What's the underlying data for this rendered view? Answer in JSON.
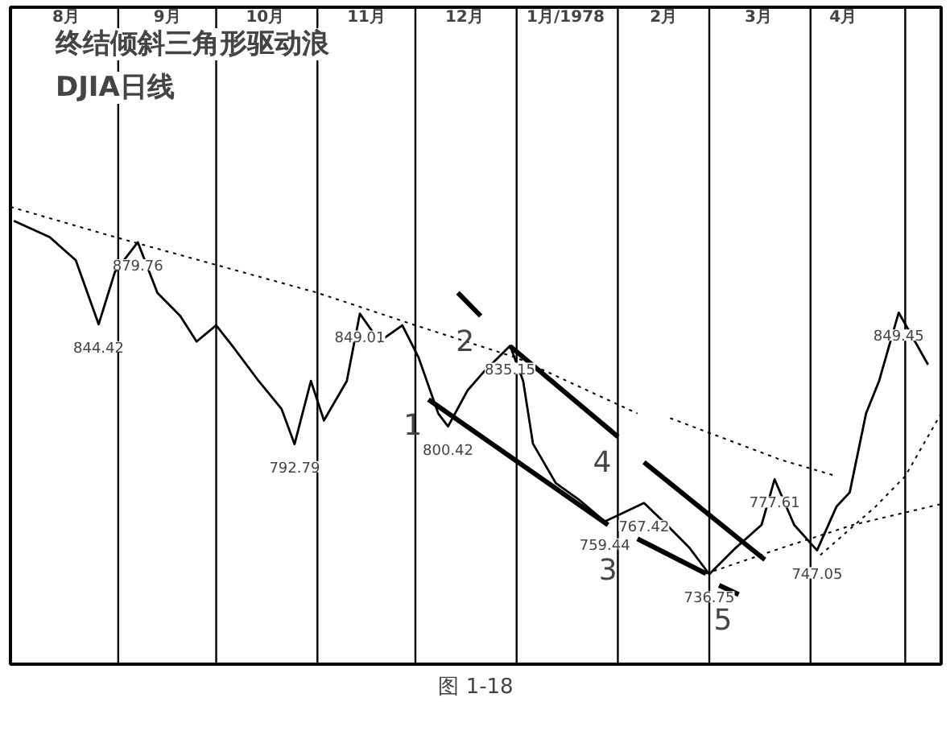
{
  "chart_data": {
    "type": "line",
    "title": "终结倾斜三角形驱动浪",
    "subtitle": "DJIA日线",
    "xlim": [
      "1977-07-30",
      "1978-05-11"
    ],
    "ylim": [
      698,
      981
    ],
    "tick_labels": "x",
    "marker": "none",
    "xticks": [
      {
        "value": "1977-08-16",
        "label": "8月"
      },
      {
        "value": "1977-09-16",
        "label": "9月"
      },
      {
        "value": "1977-10-16",
        "label": "10月"
      },
      {
        "value": "1977-11-16",
        "label": "11月"
      },
      {
        "value": "1977-12-16",
        "label": "12月"
      },
      {
        "value": "1978-01-16",
        "label": "1月/1978"
      },
      {
        "value": "1978-02-15",
        "label": "2月"
      },
      {
        "value": "1978-03-16",
        "label": "3月"
      },
      {
        "value": "1978-04-11",
        "label": "4月"
      }
    ],
    "ref_lines": [
      {
        "axis": "x",
        "value": "1977-09-01",
        "color": "#000000"
      },
      {
        "axis": "x",
        "value": "1977-10-01",
        "color": "#000000"
      },
      {
        "axis": "x",
        "value": "1977-11-01",
        "color": "#000000"
      },
      {
        "axis": "x",
        "value": "1977-12-01",
        "color": "#000000"
      },
      {
        "axis": "x",
        "value": "1978-01-01",
        "color": "#000000"
      },
      {
        "axis": "x",
        "value": "1978-02-01",
        "color": "#000000"
      },
      {
        "axis": "x",
        "value": "1978-03-01",
        "color": "#000000"
      },
      {
        "axis": "x",
        "value": "1978-04-01",
        "color": "#000000"
      },
      {
        "axis": "x",
        "value": "1978-04-30",
        "color": "#000000"
      }
    ],
    "series": [
      {
        "type": "line",
        "color": "#000000",
        "line_style": "solid",
        "x": [
          "1977-07-31",
          "1977-08-11",
          "1977-08-19",
          "1977-08-26",
          "1977-08-31",
          "1977-09-07",
          "1977-09-13",
          "1977-09-20",
          "1977-09-25",
          "1977-10-01",
          "1977-10-06",
          "1977-10-14",
          "1977-10-21",
          "1977-10-25",
          "1977-10-30",
          "1977-11-03",
          "1977-11-10",
          "1977-11-14",
          "1977-11-20",
          "1977-11-27",
          "1977-12-02",
          "1977-12-08",
          "1977-12-11",
          "1977-12-17",
          "1977-12-22",
          "1977-12-30",
          "1978-01-03",
          "1978-01-06",
          "1978-01-13",
          "1978-01-20",
          "1978-01-28",
          "1978-02-09",
          "1978-02-16",
          "1978-02-23",
          "1978-03-01",
          "1978-03-09",
          "1978-03-17",
          "1978-03-21",
          "1978-03-27",
          "1978-04-03",
          "1978-04-09",
          "1978-04-13",
          "1978-04-18",
          "1978-04-22",
          "1978-04-28",
          "1978-05-07"
        ],
        "values": [
          889,
          882,
          872,
          844.42,
          867,
          879.76,
          858,
          848,
          837,
          844,
          835,
          820,
          808,
          792.79,
          820,
          803,
          820,
          849.01,
          837,
          844,
          830,
          806,
          800.42,
          816,
          824,
          835.15,
          820,
          793,
          776,
          769,
          759.44,
          767.42,
          758,
          748,
          736.75,
          748,
          758,
          777.61,
          758,
          747.05,
          766,
          772,
          806,
          820,
          849.45,
          827
        ],
        "value_labels": [
          null,
          null,
          null,
          "844.42",
          null,
          "879.76",
          null,
          null,
          null,
          null,
          null,
          null,
          null,
          "792.79",
          null,
          null,
          null,
          "849.01",
          null,
          null,
          null,
          null,
          "800.42",
          null,
          null,
          "835.15",
          null,
          null,
          null,
          null,
          "759.44",
          "767.42",
          null,
          null,
          "736.75",
          null,
          null,
          "777.61",
          null,
          "747.05",
          null,
          null,
          null,
          null,
          "849.45",
          null
        ]
      },
      {
        "type": "line",
        "color": "#000000",
        "line_style": "solid",
        "x": [
          "1977-12-05",
          "1978-01-29"
        ],
        "values": [
          812,
          758
        ]
      },
      {
        "type": "line",
        "color": "#000000",
        "line_style": "solid",
        "x": [
          "1977-12-14",
          "1977-12-21"
        ],
        "values": [
          858,
          848
        ]
      },
      {
        "type": "line",
        "color": "#000000",
        "line_style": "solid",
        "x": [
          "1977-12-30",
          "1978-02-01"
        ],
        "values": [
          835,
          796
        ]
      },
      {
        "type": "line",
        "color": "#000000",
        "line_style": "solid",
        "x": [
          "1978-02-07",
          "1978-02-28"
        ],
        "values": [
          752,
          737
        ]
      },
      {
        "type": "line",
        "color": "#000000",
        "line_style": "solid",
        "x": [
          "1978-03-04",
          "1978-03-10"
        ],
        "values": [
          732,
          728
        ]
      },
      {
        "type": "line",
        "color": "#000000",
        "line_style": "solid",
        "x": [
          "1978-02-09",
          "1978-03-18"
        ],
        "values": [
          785,
          743
        ]
      },
      {
        "type": "line",
        "color": "#000000",
        "line_style": "dotted",
        "x": [
          "1977-07-30",
          "1977-08-31",
          "1977-10-01",
          "1977-11-01",
          "1977-12-01",
          "1978-01-01",
          "1978-02-07"
        ],
        "values": [
          895,
          882,
          870,
          858,
          844,
          830,
          806
        ]
      },
      {
        "type": "line",
        "color": "#000000",
        "line_style": "dotted",
        "x": [
          "1978-02-17",
          "1978-03-23",
          "1978-04-09"
        ],
        "values": [
          804,
          786,
          779
        ]
      },
      {
        "type": "line",
        "color": "#000000",
        "line_style": "dotted",
        "x": [
          "1978-02-28",
          "1978-03-23",
          "1978-04-14",
          "1978-05-11"
        ],
        "values": [
          737,
          748,
          758,
          767
        ]
      },
      {
        "type": "line",
        "color": "#000000",
        "line_style": "dotted",
        "x": [
          "1978-04-04",
          "1978-04-21",
          "1978-04-30",
          "1978-05-11"
        ],
        "values": [
          745,
          766,
          779,
          806
        ]
      }
    ],
    "annotations": [
      {
        "text": "1",
        "x": "1977-12-05",
        "y": 812
      },
      {
        "text": "2",
        "x": "1977-12-21",
        "y": 848
      },
      {
        "text": "3",
        "x": "1978-01-29",
        "y": 758
      },
      {
        "text": "4",
        "x": "1978-02-01",
        "y": 796
      },
      {
        "text": "5",
        "x": "1978-03-10",
        "y": 728
      },
      "图 1-18"
    ]
  }
}
